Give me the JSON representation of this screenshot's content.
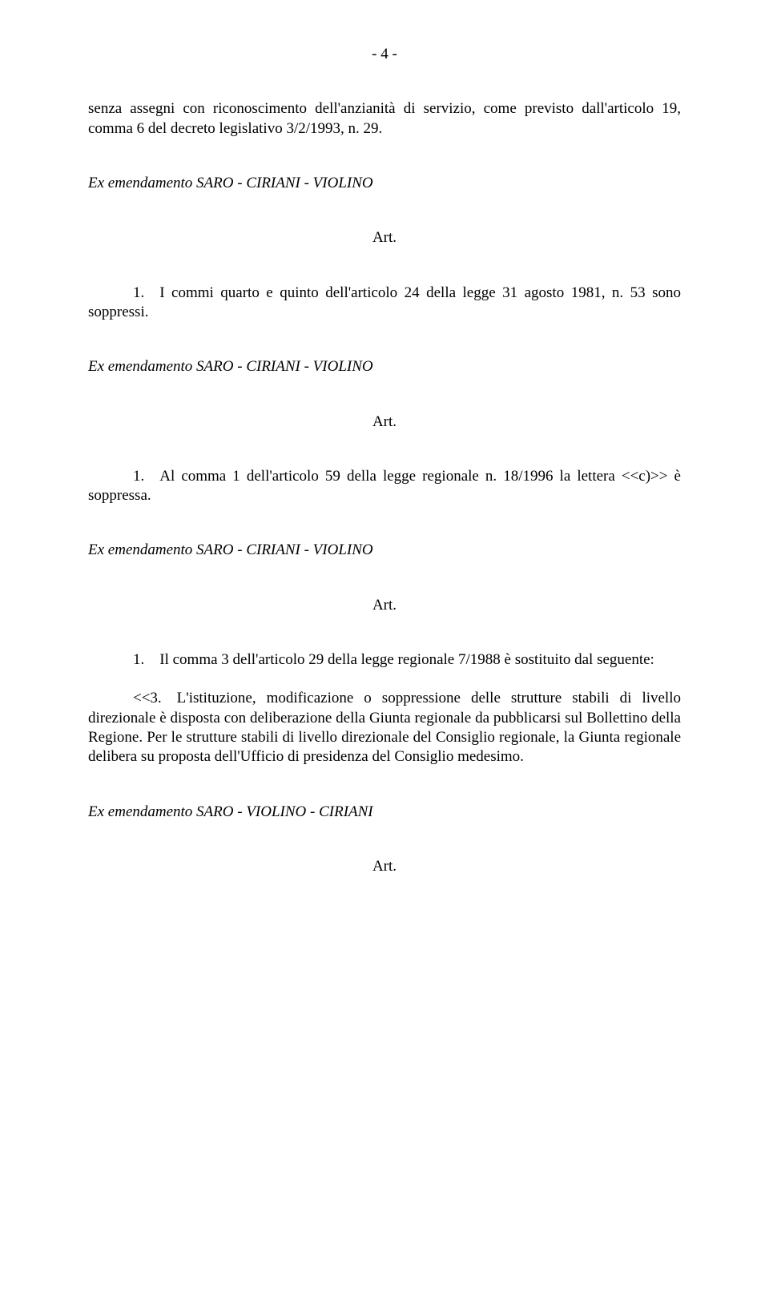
{
  "page_number": "- 4 -",
  "p1": "senza assegni con riconoscimento dell'anzianità di servizio, come previsto dall'articolo 19, comma 6 del decreto legislativo 3/2/1993, n. 29.",
  "amend1": "Ex emendamento SARO - CIRIANI - VIOLINO",
  "art_label": "Art.",
  "p2": "1. I commi quarto e quinto dell'articolo 24 della legge 31 agosto 1981, n. 53 sono soppressi.",
  "amend2": "Ex emendamento SARO - CIRIANI - VIOLINO",
  "p3": "1. Al comma 1 dell'articolo 59 della legge regionale n. 18/1996 la lettera <<c)>> è soppressa.",
  "amend3": "Ex emendamento SARO - CIRIANI - VIOLINO",
  "p4": "1. Il comma 3 dell'articolo 29 della legge regionale 7/1988 è sostituito dal seguente:",
  "p5": "<<3. L'istituzione, modificazione o soppressione delle strutture stabili di livello direzionale è disposta con deliberazione della Giunta regionale da pubblicarsi sul Bollettino della Regione. Per le strutture stabili di livello direzionale del Consiglio regionale, la Giunta regionale delibera su proposta dell'Ufficio di presidenza del Consiglio medesimo.",
  "amend4": "Ex emendamento SARO - VIOLINO - CIRIANI"
}
